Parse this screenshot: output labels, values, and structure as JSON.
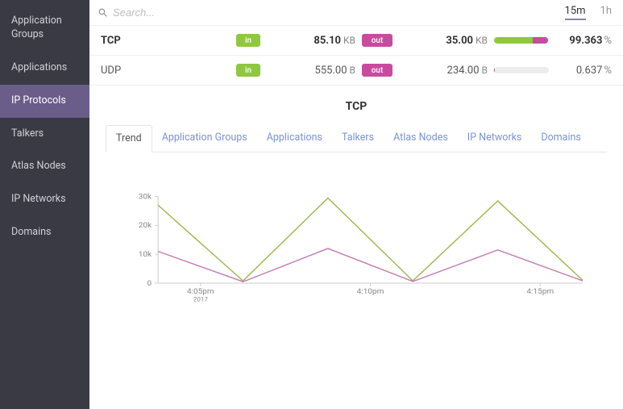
{
  "sidebar": {
    "items": [
      {
        "label": "Application Groups",
        "key": "app-groups",
        "active": false
      },
      {
        "label": "Applications",
        "key": "applications",
        "active": false
      },
      {
        "label": "IP Protocols",
        "key": "ip-protocols",
        "active": true
      },
      {
        "label": "Talkers",
        "key": "talkers",
        "active": false
      },
      {
        "label": "Atlas Nodes",
        "key": "atlas-nodes",
        "active": false
      },
      {
        "label": "IP Networks",
        "key": "ip-networks",
        "active": false
      },
      {
        "label": "Domains",
        "key": "domains",
        "active": false
      }
    ]
  },
  "search": {
    "placeholder": "Search..."
  },
  "time_range": {
    "options": [
      {
        "label": "15m",
        "active": true
      },
      {
        "label": "1h",
        "active": false
      }
    ]
  },
  "badges": {
    "in": "in",
    "out": "out"
  },
  "protocols": [
    {
      "name": "TCP",
      "bold": true,
      "in_value": "85.10",
      "in_unit": "KB",
      "out_value": "35.00",
      "out_unit": "KB",
      "pct_value": "99.363",
      "pct_unit": "%",
      "bar": {
        "in_width_pct": 70,
        "out_width_pct": 29,
        "track_pct": 100
      }
    },
    {
      "name": "UDP",
      "bold": false,
      "in_value": "555.00",
      "in_unit": "B",
      "out_value": "234.00",
      "out_unit": "B",
      "pct_value": "0.637",
      "pct_unit": "%",
      "bar": {
        "in_width_pct": 0.6,
        "out_width_pct": 0.3,
        "track_pct": 100
      }
    }
  ],
  "chart": {
    "title": "TCP",
    "tabs": [
      {
        "label": "Trend",
        "key": "trend",
        "active": true
      },
      {
        "label": "Application Groups",
        "key": "app-groups",
        "active": false
      },
      {
        "label": "Applications",
        "key": "applications",
        "active": false
      },
      {
        "label": "Talkers",
        "key": "talkers",
        "active": false
      },
      {
        "label": "Atlas Nodes",
        "key": "atlas-nodes",
        "active": false
      },
      {
        "label": "IP Networks",
        "key": "ip-networks",
        "active": false
      },
      {
        "label": "Domains",
        "key": "domains",
        "active": false
      }
    ],
    "type": "line",
    "ylim": [
      0,
      30000
    ],
    "yticks": [
      0,
      10000,
      20000,
      30000
    ],
    "ytick_labels": [
      "0",
      "10k",
      "20k",
      "30k"
    ],
    "x_categories": [
      "4:05pm",
      "4:10pm",
      "4:15pm"
    ],
    "x_sublabel": "2017",
    "series": [
      {
        "name": "in",
        "color": "#a0b84f",
        "values": [
          27000,
          800,
          29500,
          800,
          28500,
          1000
        ]
      },
      {
        "name": "out",
        "color": "#c27bb5",
        "values": [
          11000,
          500,
          12000,
          600,
          11500,
          800
        ]
      }
    ],
    "colors": {
      "grid": "#eeeeee",
      "axis_text": "#888888",
      "background": "#ffffff",
      "line_in": "#a0b84f",
      "line_out": "#c27bb5"
    },
    "line_width": 1.5,
    "label_fontsize": 10
  },
  "colors": {
    "sidebar_bg": "#3a3a44",
    "sidebar_active": "#6a5d8a",
    "badge_in": "#8fc73e",
    "badge_out": "#c84b9e",
    "accent_underline": "#8a7fb0",
    "link": "#7a93d6"
  }
}
